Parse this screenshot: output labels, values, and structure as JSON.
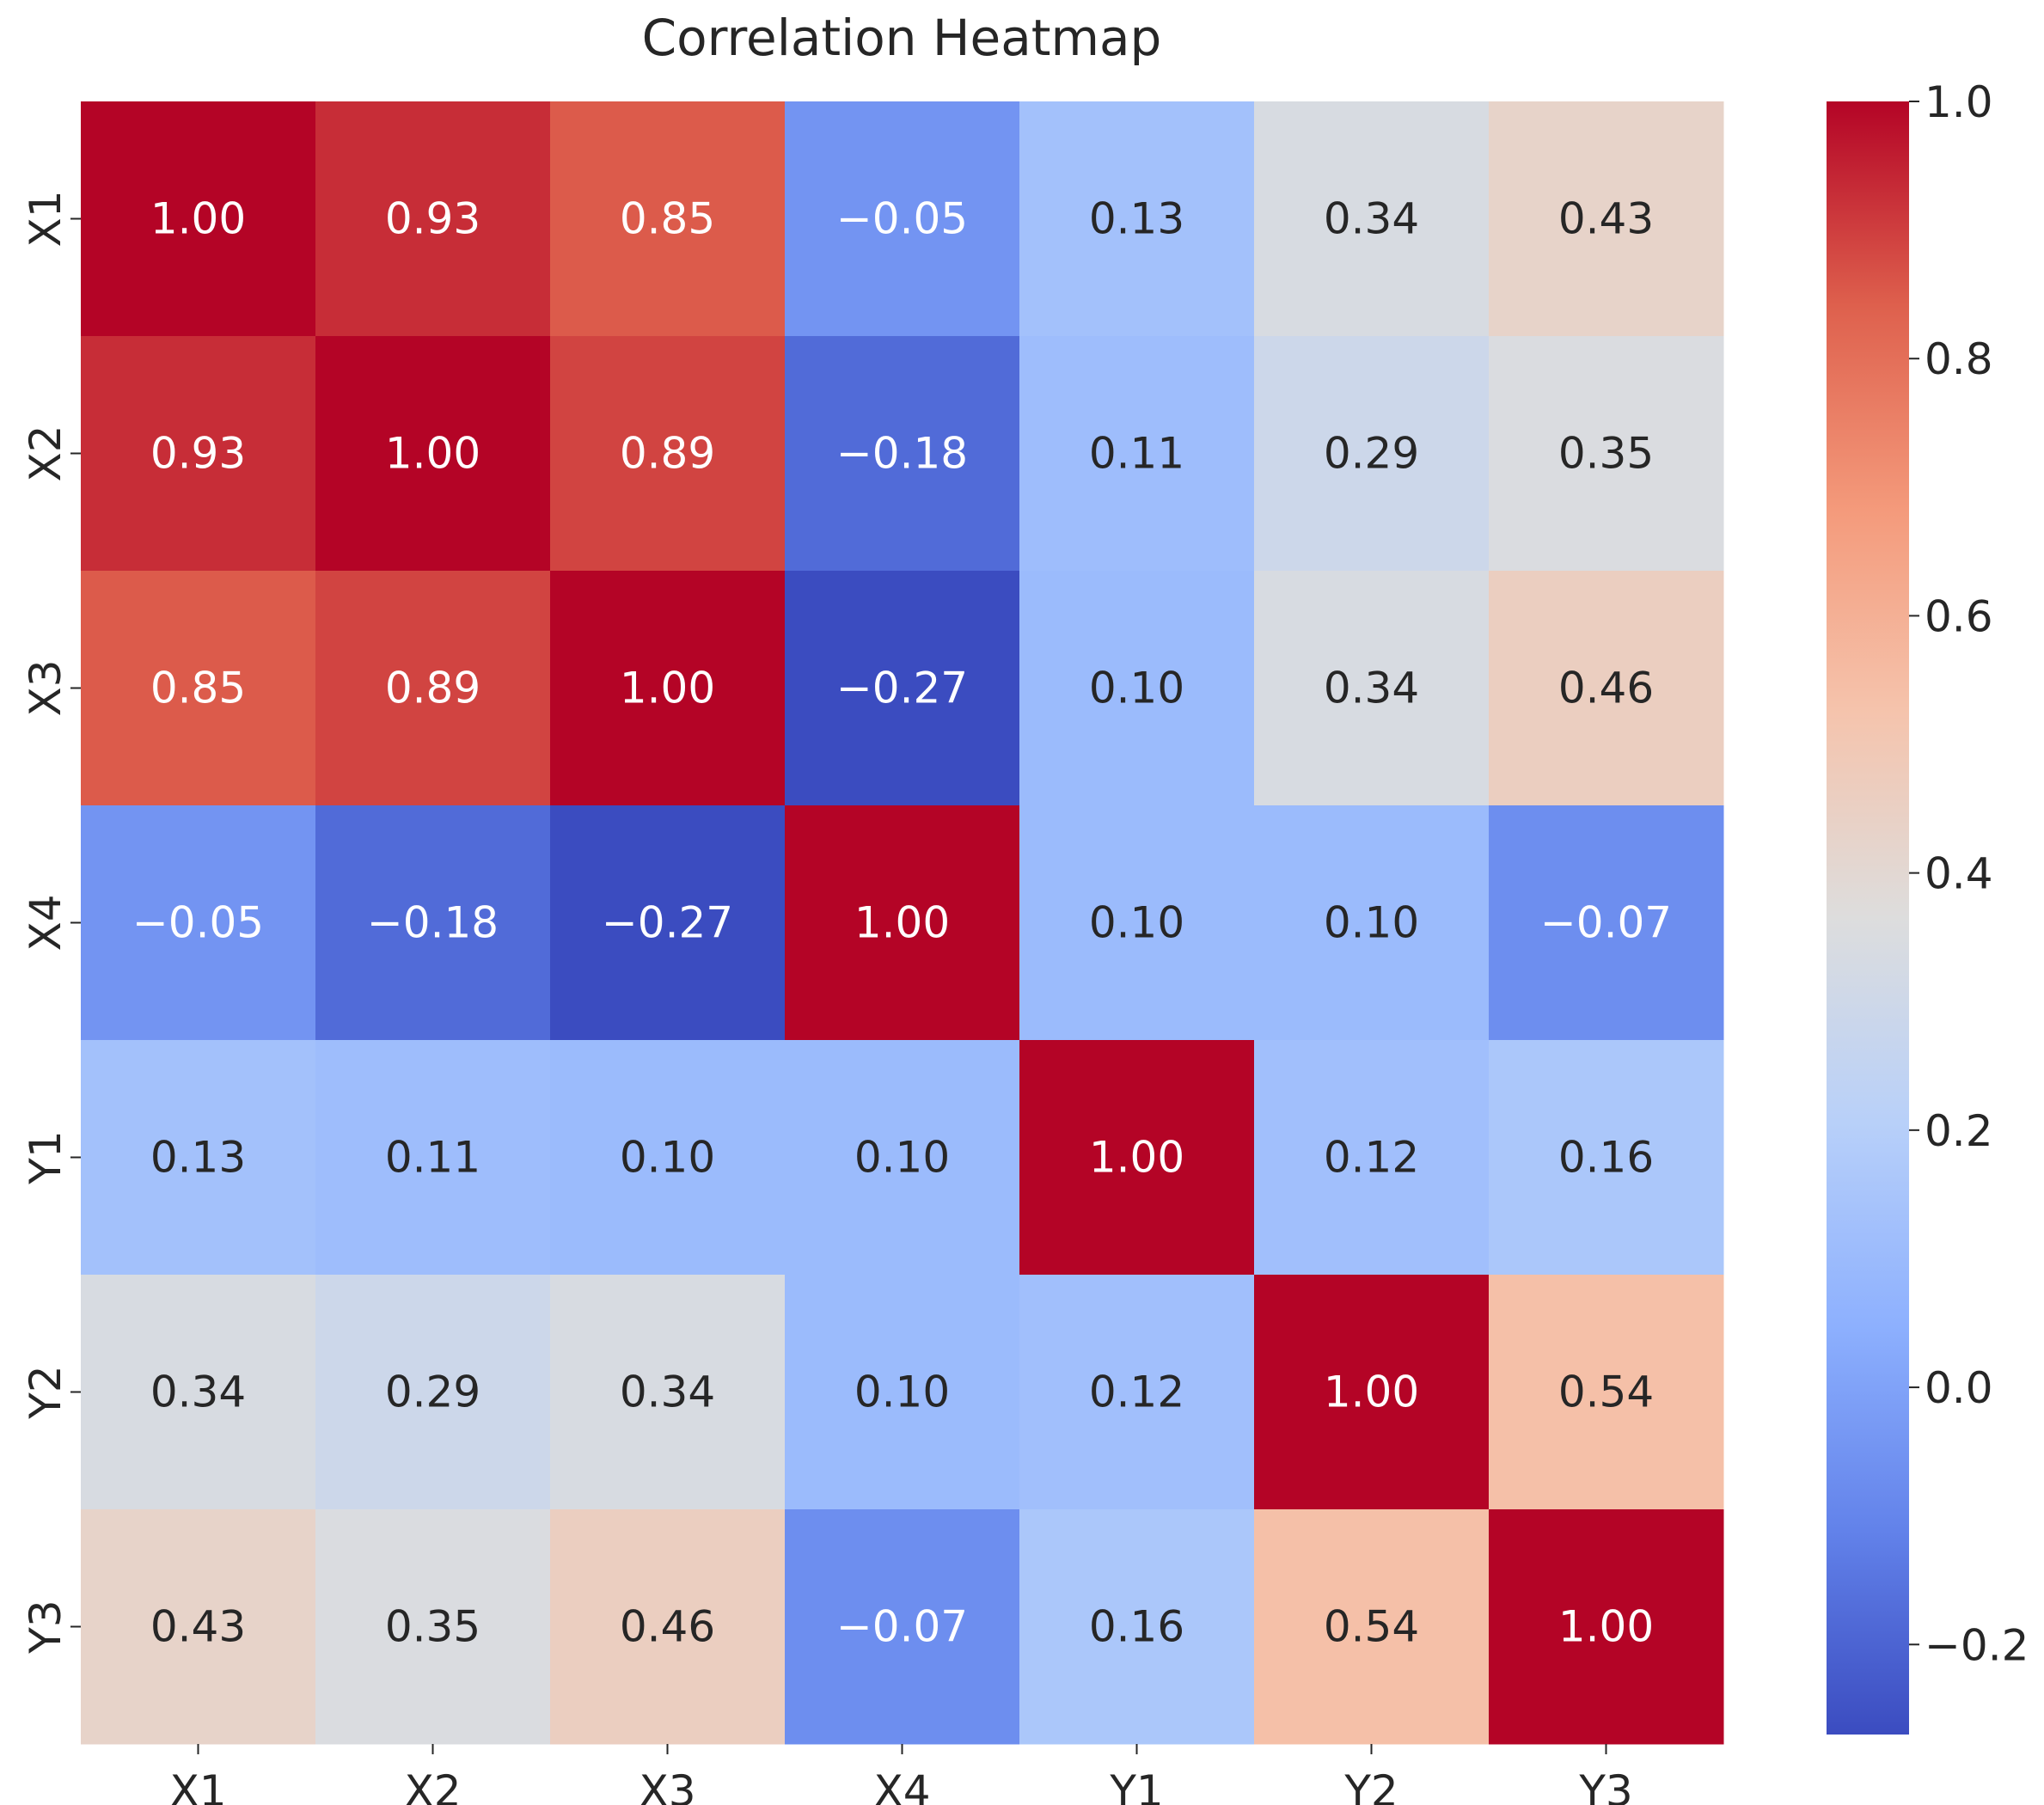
{
  "chart_data": {
    "type": "heatmap",
    "title": "Correlation Heatmap",
    "xlabel": "",
    "ylabel": "",
    "x_categories": [
      "X1",
      "X2",
      "X3",
      "X4",
      "Y1",
      "Y2",
      "Y3"
    ],
    "y_categories": [
      "X1",
      "X2",
      "X3",
      "X4",
      "Y1",
      "Y2",
      "Y3"
    ],
    "values": [
      [
        1.0,
        0.93,
        0.85,
        -0.05,
        0.13,
        0.34,
        0.43
      ],
      [
        0.93,
        1.0,
        0.89,
        -0.18,
        0.11,
        0.29,
        0.35
      ],
      [
        0.85,
        0.89,
        1.0,
        -0.27,
        0.1,
        0.34,
        0.46
      ],
      [
        -0.05,
        -0.18,
        -0.27,
        1.0,
        0.1,
        0.1,
        -0.07
      ],
      [
        0.13,
        0.11,
        0.1,
        0.1,
        1.0,
        0.12,
        0.16
      ],
      [
        0.34,
        0.29,
        0.34,
        0.1,
        0.12,
        1.0,
        0.54
      ],
      [
        0.43,
        0.35,
        0.46,
        -0.07,
        0.16,
        0.54,
        1.0
      ]
    ],
    "value_format": "2 decimals",
    "colormap": "coolwarm",
    "colorbar": {
      "range": [
        -0.27,
        1.0
      ],
      "ticks": [
        1.0,
        0.8,
        0.6,
        0.4,
        0.2,
        0.0,
        -0.2
      ],
      "tick_labels": [
        "1.0",
        "0.8",
        "0.6",
        "0.4",
        "0.2",
        "0.0",
        "−0.2"
      ],
      "placement": "right"
    },
    "grid": false
  }
}
